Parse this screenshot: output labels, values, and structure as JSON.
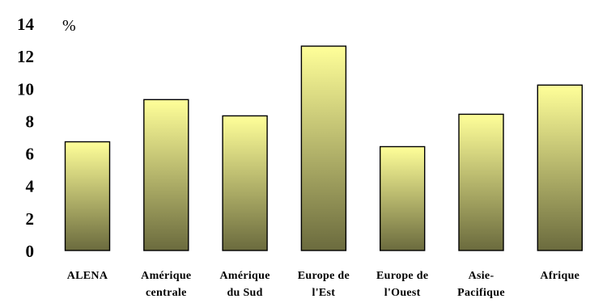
{
  "chart_data": {
    "type": "bar",
    "unit_label": "%",
    "categories": [
      [
        "ALENA"
      ],
      [
        "Amérique",
        "centrale"
      ],
      [
        "Amérique",
        "du Sud"
      ],
      [
        "Europe de",
        "l'Est"
      ],
      [
        "Europe de",
        "l'Ouest"
      ],
      [
        "Asie-",
        "Pacifique"
      ],
      [
        "Afrique"
      ]
    ],
    "values": [
      6.7,
      9.3,
      8.3,
      12.6,
      6.4,
      8.4,
      10.2
    ],
    "ylim": [
      0,
      14
    ],
    "yticks": [
      0,
      2,
      4,
      6,
      8,
      10,
      12,
      14
    ],
    "grid": false,
    "legend": "none",
    "bar_gradient": {
      "top": "#ffff99",
      "bottom": "#6b6b3e",
      "outline": "#000000"
    }
  }
}
